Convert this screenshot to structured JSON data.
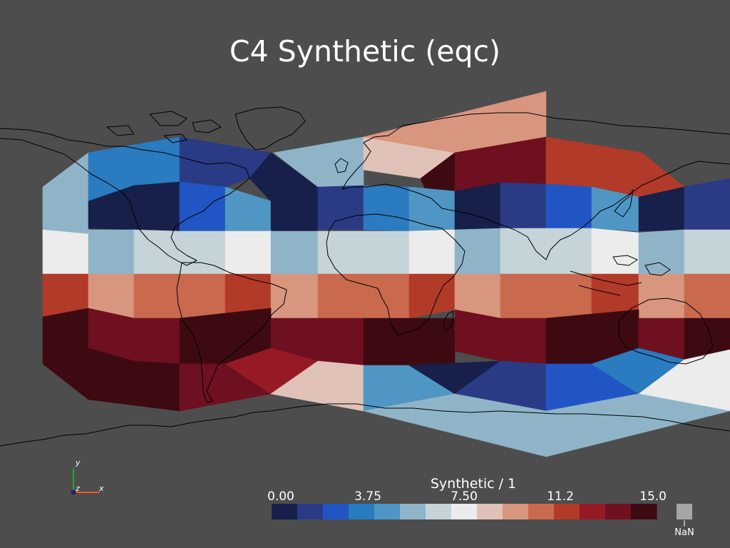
{
  "chart_data": {
    "type": "heatmap",
    "title": "C4 Synthetic (eqc)",
    "colorbar": {
      "label": "Synthetic / 1",
      "tick_labels": [
        "0.00",
        "3.75",
        "7.50",
        "11.2",
        "15.0"
      ],
      "range": [
        0,
        15
      ],
      "nan_label": "NaN",
      "colors": [
        "#16204a",
        "#2b3a85",
        "#2255c4",
        "#2a7bc0",
        "#4f96c4",
        "#8fb4c8",
        "#c4d4d8",
        "#ececec",
        "#e0c2b8",
        "#d8967e",
        "#c96a4e",
        "#b23a28",
        "#961a26",
        "#6e1020",
        "#3e0a12"
      ],
      "nan_color": "#a6a6a6"
    },
    "axes_triad": {
      "x": "x",
      "y": "y",
      "z": "z"
    },
    "cells": [
      {
        "id": "c0",
        "v": 5.2
      },
      {
        "id": "c1",
        "v": 3.2
      },
      {
        "id": "c2",
        "v": 1.0
      },
      {
        "id": "c3",
        "v": 0.5
      },
      {
        "id": "c4",
        "v": 5.6
      },
      {
        "id": "c5",
        "v": 8.4
      },
      {
        "id": "c6",
        "v": 9.6
      },
      {
        "id": "c7",
        "v": 14.2
      },
      {
        "id": "c8",
        "v": 13.8
      },
      {
        "id": "c9",
        "v": 11.0
      },
      {
        "id": "c10",
        "v": 0.2
      },
      {
        "id": "c11",
        "v": 0.9
      },
      {
        "id": "c12",
        "v": 2.6
      },
      {
        "id": "c13",
        "v": 4.6
      },
      {
        "id": "c14",
        "v": 0.2
      },
      {
        "id": "c15",
        "v": 1.0
      },
      {
        "id": "c16",
        "v": 3.0
      },
      {
        "id": "c17",
        "v": 4.6
      },
      {
        "id": "c18",
        "v": 0.5
      },
      {
        "id": "c19",
        "v": 1.6
      },
      {
        "id": "c20",
        "v": 2.6
      },
      {
        "id": "c21",
        "v": 4.6
      },
      {
        "id": "c22",
        "v": 0.3
      },
      {
        "id": "c23",
        "v": 1.0
      },
      {
        "id": "c24",
        "v": 7.2
      },
      {
        "id": "c25",
        "v": 5.6
      },
      {
        "id": "c26",
        "v": 6.0
      },
      {
        "id": "c27",
        "v": 6.8
      },
      {
        "id": "c28",
        "v": 7.0
      },
      {
        "id": "c29",
        "v": 5.4
      },
      {
        "id": "c30",
        "v": 6.4
      },
      {
        "id": "c31",
        "v": 6.6
      },
      {
        "id": "c32",
        "v": 7.3
      },
      {
        "id": "c33",
        "v": 5.4
      },
      {
        "id": "c34",
        "v": 6.2
      },
      {
        "id": "c35",
        "v": 6.7
      },
      {
        "id": "c36",
        "v": 7.2
      },
      {
        "id": "c37",
        "v": 5.4
      },
      {
        "id": "c38",
        "v": 6.0
      },
      {
        "id": "c39",
        "v": 11.6
      },
      {
        "id": "c40",
        "v": 9.2
      },
      {
        "id": "c41",
        "v": 10.2
      },
      {
        "id": "c42",
        "v": 10.8
      },
      {
        "id": "c43",
        "v": 11.4
      },
      {
        "id": "c44",
        "v": 9.2
      },
      {
        "id": "c45",
        "v": 10.2
      },
      {
        "id": "c46",
        "v": 10.8
      },
      {
        "id": "c47",
        "v": 11.4
      },
      {
        "id": "c48",
        "v": 9.2
      },
      {
        "id": "c49",
        "v": 10.2
      },
      {
        "id": "c50",
        "v": 10.8
      },
      {
        "id": "c51",
        "v": 11.4
      },
      {
        "id": "c52",
        "v": 9.0
      },
      {
        "id": "c53",
        "v": 10.0
      },
      {
        "id": "c54",
        "v": 14.6
      },
      {
        "id": "c55",
        "v": 13.0
      },
      {
        "id": "c56",
        "v": 13.8
      },
      {
        "id": "c57",
        "v": 14.5
      },
      {
        "id": "c58",
        "v": 13.2
      },
      {
        "id": "c59",
        "v": 13.8
      },
      {
        "id": "c60",
        "v": 14.6
      },
      {
        "id": "c61",
        "v": 13.0
      },
      {
        "id": "c62",
        "v": 13.8
      },
      {
        "id": "c63",
        "v": 14.6
      },
      {
        "id": "c64",
        "v": 13.2
      },
      {
        "id": "c65",
        "v": 14.0
      },
      {
        "id": "c66",
        "v": 14.5
      },
      {
        "id": "c67",
        "v": 13.8
      },
      {
        "id": "c68",
        "v": 12.8
      },
      {
        "id": "c69",
        "v": 8.2
      },
      {
        "id": "c70",
        "v": 4.4
      },
      {
        "id": "c71",
        "v": 0.5
      },
      {
        "id": "c72",
        "v": 1.2
      },
      {
        "id": "c73",
        "v": 2.3
      },
      {
        "id": "c74",
        "v": 3.6
      },
      {
        "id": "c75",
        "v": 7.0
      },
      {
        "id": "c76",
        "v": 5.4
      },
      {
        "id": "c77",
        "v": 5.6
      }
    ]
  }
}
